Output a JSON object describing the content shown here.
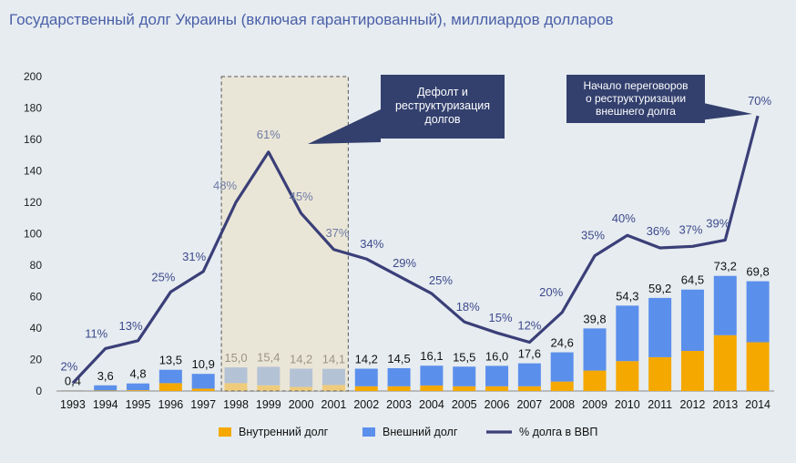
{
  "chart_data": {
    "type": "bar",
    "title": "Государственный долг Украины (включая гарантированный), миллиардов долларов",
    "categories": [
      "1993",
      "1994",
      "1995",
      "1996",
      "1997",
      "1998",
      "1999",
      "2000",
      "2001",
      "2002",
      "2003",
      "2004",
      "2005",
      "2006",
      "2007",
      "2008",
      "2009",
      "2010",
      "2011",
      "2012",
      "2013",
      "2014"
    ],
    "series": [
      {
        "name": "Внутренний долг",
        "color": "#f5a800",
        "values": [
          0.2,
          0.3,
          0.5,
          5.0,
          1.5,
          5.0,
          3.6,
          2.6,
          3.8,
          3.0,
          3.0,
          3.5,
          3.0,
          3.0,
          3.0,
          6.0,
          13.0,
          19.0,
          21.5,
          25.5,
          35.5,
          31.0
        ]
      },
      {
        "name": "Внешний долг",
        "color": "#5b8fec",
        "values": [
          0.2,
          3.3,
          4.3,
          8.5,
          9.4,
          10.0,
          11.8,
          11.6,
          10.3,
          11.2,
          11.5,
          12.6,
          12.5,
          13.0,
          14.6,
          18.6,
          26.8,
          35.3,
          37.7,
          39.0,
          37.7,
          38.8
        ]
      },
      {
        "name": "% долга в ВВП",
        "type": "line",
        "color": "#3a3f78",
        "values": [
          5,
          27,
          32,
          63,
          76,
          120,
          152,
          113,
          90,
          84,
          73,
          62,
          44,
          37,
          31,
          50,
          86,
          99,
          91,
          92,
          96,
          175
        ],
        "point_labels": [
          "2%",
          "11%",
          "13%",
          "25%",
          "31%",
          "48%",
          "61%",
          "45%",
          "37%",
          "34%",
          "29%",
          "25%",
          "18%",
          "15%",
          "12%",
          "20%",
          "35%",
          "40%",
          "36%",
          "37%",
          "39%",
          "70%"
        ]
      }
    ],
    "total_labels": [
      "0,4",
      "3,6",
      "4,8",
      "13,5",
      "10,9",
      "15,0",
      "15,4",
      "14,2",
      "14,1",
      "14,2",
      "14,5",
      "16,1",
      "15,5",
      "16,0",
      "17,6",
      "24,6",
      "39,8",
      "54,3",
      "59,2",
      "64,5",
      "73,2",
      "69,8"
    ],
    "ylim": [
      0,
      200
    ],
    "yticks": [
      0,
      20,
      40,
      60,
      80,
      100,
      120,
      140,
      160,
      180,
      200
    ],
    "xlabel": "",
    "ylabel": "",
    "highlight_range": [
      "1998",
      "2001"
    ],
    "annotations": [
      {
        "text_lines": [
          "Дефолт  и",
          "реструктуризация",
          "долгов"
        ],
        "box_color": "#33406e",
        "text_color": "#ffffff"
      },
      {
        "text_lines": [
          "Начало  переговоров",
          "о реструктуризации",
          "внешнего долга"
        ],
        "box_color": "#33406e",
        "text_color": "#ffffff"
      }
    ],
    "legend": {
      "position": "bottom",
      "entries": [
        "Внутренний долг",
        "Внешний долг",
        "% долга в ВВП"
      ]
    }
  }
}
